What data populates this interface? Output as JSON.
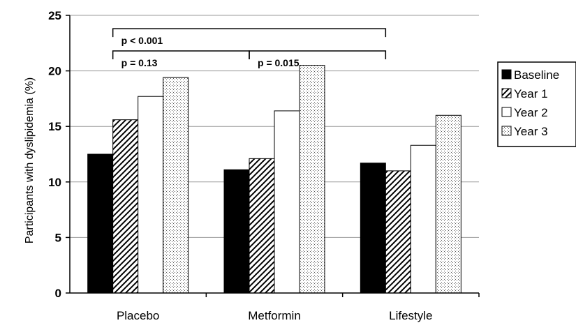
{
  "chart_data": {
    "type": "bar",
    "categories": [
      "Placebo",
      "Metformin",
      "Lifestyle"
    ],
    "series": [
      {
        "name": "Baseline",
        "values": [
          12.5,
          11.1,
          11.7
        ],
        "fill": "solid-black"
      },
      {
        "name": "Year 1",
        "values": [
          15.6,
          12.1,
          11.0
        ],
        "fill": "diagonal-hatch"
      },
      {
        "name": "Year 2",
        "values": [
          17.7,
          16.4,
          13.3
        ],
        "fill": "white"
      },
      {
        "name": "Year 3",
        "values": [
          19.4,
          20.5,
          16.0
        ],
        "fill": "dotted"
      }
    ],
    "title": "",
    "xlabel": "",
    "ylabel": "Participants with dyslipidemia (%)",
    "ylim": [
      0,
      25
    ],
    "yticks": [
      "0",
      "5",
      "10",
      "15",
      "20",
      "25"
    ],
    "grid": true,
    "legend_position": "right",
    "annotations": [
      {
        "text": "p < 0.001",
        "from_category": 0,
        "to_category": 2,
        "bracket_level": 23.8
      },
      {
        "text": "p = 0.13",
        "from_category": 0,
        "to_category": 1,
        "bracket_level": 21.8
      },
      {
        "text": "p = 0.015",
        "from_category": 1,
        "to_category": 2,
        "bracket_level": 21.8
      }
    ]
  }
}
